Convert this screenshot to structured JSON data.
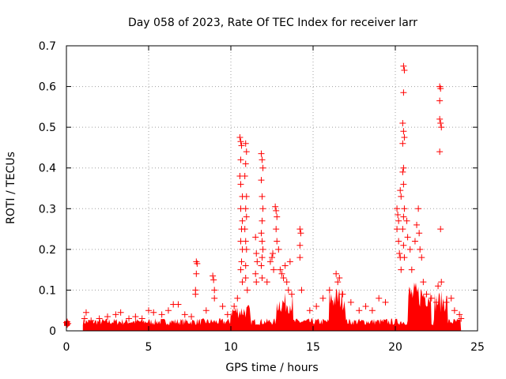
{
  "chart_data": {
    "type": "scatter",
    "title": "Day 058 of 2023, Rate Of TEC Index for receiver larr",
    "xlabel": "GPS time / hours",
    "ylabel": "ROTI / TECUs",
    "xlim": [
      0,
      25
    ],
    "ylim": [
      0,
      0.7
    ],
    "x_ticks": [
      0,
      5,
      10,
      15,
      20,
      25
    ],
    "y_ticks": [
      0,
      0.1,
      0.2,
      0.3,
      0.4,
      0.5,
      0.6,
      0.7
    ],
    "x_tick_labels": [
      "0",
      "5",
      "10",
      "15",
      "20",
      "25"
    ],
    "y_tick_labels": [
      "0",
      "0.1",
      "0.2",
      "0.3",
      "0.4",
      "0.5",
      "0.6",
      "0.7"
    ],
    "grid": true,
    "legend": "none",
    "marker": "+",
    "color": "#ff0000",
    "series": [
      {
        "points": [
          [
            0.0,
            0.02
          ],
          [
            0.05,
            0.015
          ],
          [
            0.1,
            0.018
          ],
          [
            0.05,
            0.022
          ],
          [
            1.1,
            0.03
          ],
          [
            1.2,
            0.045
          ],
          [
            1.5,
            0.025
          ],
          [
            2.0,
            0.03
          ],
          [
            2.5,
            0.035
          ],
          [
            3.0,
            0.04
          ],
          [
            3.3,
            0.045
          ],
          [
            3.8,
            0.03
          ],
          [
            4.2,
            0.035
          ],
          [
            4.6,
            0.03
          ],
          [
            5.0,
            0.05
          ],
          [
            5.3,
            0.045
          ],
          [
            5.8,
            0.04
          ],
          [
            6.2,
            0.05
          ],
          [
            6.5,
            0.065
          ],
          [
            6.8,
            0.065
          ],
          [
            7.2,
            0.04
          ],
          [
            7.6,
            0.035
          ],
          [
            7.9,
            0.17
          ],
          [
            7.95,
            0.165
          ],
          [
            7.9,
            0.14
          ],
          [
            7.85,
            0.1
          ],
          [
            7.85,
            0.09
          ],
          [
            8.5,
            0.05
          ],
          [
            8.9,
            0.135
          ],
          [
            8.95,
            0.125
          ],
          [
            9.0,
            0.1
          ],
          [
            9.0,
            0.08
          ],
          [
            9.5,
            0.06
          ],
          [
            9.8,
            0.04
          ],
          [
            10.2,
            0.06
          ],
          [
            10.4,
            0.08
          ],
          [
            10.55,
            0.475
          ],
          [
            10.6,
            0.465
          ],
          [
            10.65,
            0.455
          ],
          [
            10.6,
            0.42
          ],
          [
            10.55,
            0.38
          ],
          [
            10.6,
            0.36
          ],
          [
            10.7,
            0.33
          ],
          [
            10.6,
            0.3
          ],
          [
            10.7,
            0.27
          ],
          [
            10.65,
            0.25
          ],
          [
            10.6,
            0.22
          ],
          [
            10.7,
            0.2
          ],
          [
            10.65,
            0.17
          ],
          [
            10.6,
            0.15
          ],
          [
            10.7,
            0.12
          ],
          [
            10.9,
            0.46
          ],
          [
            10.95,
            0.44
          ],
          [
            10.9,
            0.41
          ],
          [
            10.85,
            0.38
          ],
          [
            10.95,
            0.33
          ],
          [
            10.9,
            0.3
          ],
          [
            10.95,
            0.28
          ],
          [
            10.85,
            0.25
          ],
          [
            10.9,
            0.22
          ],
          [
            10.95,
            0.2
          ],
          [
            10.9,
            0.16
          ],
          [
            10.9,
            0.13
          ],
          [
            11.0,
            0.1
          ],
          [
            11.5,
            0.23
          ],
          [
            11.55,
            0.19
          ],
          [
            11.6,
            0.17
          ],
          [
            11.5,
            0.14
          ],
          [
            11.55,
            0.12
          ],
          [
            11.85,
            0.435
          ],
          [
            11.9,
            0.42
          ],
          [
            11.95,
            0.4
          ],
          [
            11.85,
            0.37
          ],
          [
            11.9,
            0.33
          ],
          [
            11.95,
            0.3
          ],
          [
            11.9,
            0.27
          ],
          [
            11.85,
            0.24
          ],
          [
            11.9,
            0.22
          ],
          [
            11.95,
            0.2
          ],
          [
            11.9,
            0.18
          ],
          [
            11.85,
            0.16
          ],
          [
            11.9,
            0.13
          ],
          [
            12.2,
            0.12
          ],
          [
            12.4,
            0.17
          ],
          [
            12.5,
            0.18
          ],
          [
            12.55,
            0.19
          ],
          [
            12.6,
            0.15
          ],
          [
            12.7,
            0.305
          ],
          [
            12.75,
            0.295
          ],
          [
            12.8,
            0.28
          ],
          [
            12.75,
            0.25
          ],
          [
            12.8,
            0.22
          ],
          [
            12.9,
            0.2
          ],
          [
            13.0,
            0.15
          ],
          [
            13.1,
            0.14
          ],
          [
            13.2,
            0.13
          ],
          [
            13.3,
            0.16
          ],
          [
            13.4,
            0.12
          ],
          [
            13.5,
            0.1
          ],
          [
            13.6,
            0.17
          ],
          [
            13.7,
            0.09
          ],
          [
            14.2,
            0.25
          ],
          [
            14.25,
            0.24
          ],
          [
            14.2,
            0.21
          ],
          [
            14.2,
            0.18
          ],
          [
            14.3,
            0.1
          ],
          [
            14.8,
            0.05
          ],
          [
            15.2,
            0.06
          ],
          [
            15.6,
            0.08
          ],
          [
            16.0,
            0.1
          ],
          [
            16.4,
            0.14
          ],
          [
            16.5,
            0.12
          ],
          [
            16.6,
            0.13
          ],
          [
            16.8,
            0.09
          ],
          [
            17.3,
            0.07
          ],
          [
            17.8,
            0.05
          ],
          [
            18.2,
            0.06
          ],
          [
            18.6,
            0.05
          ],
          [
            19.0,
            0.08
          ],
          [
            19.4,
            0.07
          ],
          [
            20.1,
            0.3
          ],
          [
            20.15,
            0.285
          ],
          [
            20.2,
            0.27
          ],
          [
            20.1,
            0.25
          ],
          [
            20.2,
            0.22
          ],
          [
            20.3,
            0.345
          ],
          [
            20.35,
            0.33
          ],
          [
            20.25,
            0.19
          ],
          [
            20.3,
            0.18
          ],
          [
            20.35,
            0.15
          ],
          [
            20.5,
            0.65
          ],
          [
            20.55,
            0.64
          ],
          [
            20.5,
            0.585
          ],
          [
            20.45,
            0.51
          ],
          [
            20.5,
            0.49
          ],
          [
            20.55,
            0.475
          ],
          [
            20.45,
            0.46
          ],
          [
            20.5,
            0.4
          ],
          [
            20.45,
            0.39
          ],
          [
            20.5,
            0.36
          ],
          [
            20.55,
            0.3
          ],
          [
            20.5,
            0.28
          ],
          [
            20.45,
            0.25
          ],
          [
            20.5,
            0.21
          ],
          [
            20.55,
            0.18
          ],
          [
            20.7,
            0.27
          ],
          [
            20.75,
            0.23
          ],
          [
            20.9,
            0.2
          ],
          [
            21.0,
            0.15
          ],
          [
            21.2,
            0.22
          ],
          [
            21.3,
            0.26
          ],
          [
            21.4,
            0.3
          ],
          [
            21.45,
            0.24
          ],
          [
            21.5,
            0.2
          ],
          [
            21.6,
            0.18
          ],
          [
            21.7,
            0.12
          ],
          [
            21.9,
            0.09
          ],
          [
            22.2,
            0.08
          ],
          [
            22.5,
            0.07
          ],
          [
            22.7,
            0.6
          ],
          [
            22.75,
            0.595
          ],
          [
            22.7,
            0.565
          ],
          [
            22.7,
            0.52
          ],
          [
            22.75,
            0.51
          ],
          [
            22.8,
            0.5
          ],
          [
            22.7,
            0.44
          ],
          [
            22.75,
            0.25
          ],
          [
            22.8,
            0.12
          ],
          [
            22.6,
            0.11
          ],
          [
            23.1,
            0.07
          ],
          [
            23.4,
            0.08
          ],
          [
            23.6,
            0.05
          ],
          [
            23.9,
            0.04
          ],
          [
            24.0,
            0.03
          ]
        ]
      }
    ]
  }
}
